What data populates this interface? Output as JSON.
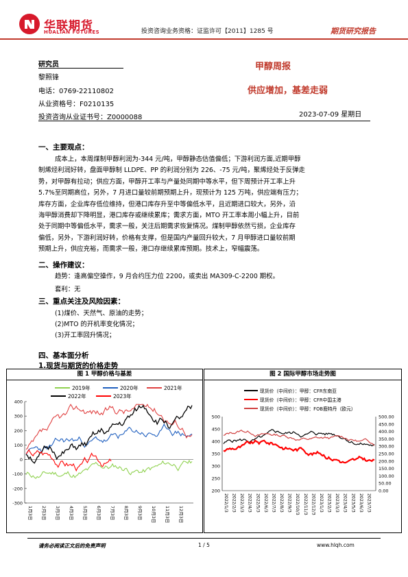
{
  "header": {
    "company_cn": "华联期货",
    "company_en": "HUALIAN FUTURES",
    "license": "投资咨询业务资格：证监许可【2011】1285 号",
    "report_type": "期货研究报告",
    "brand_color": "#d7192b"
  },
  "analyst": {
    "label": "研究员",
    "name": "黎照锋",
    "phone": "电话：0769-22110802",
    "qualification": "从业资格号：F0210135",
    "advisory_cert": "投资咨询从业证书号：Z0000088"
  },
  "report": {
    "title": "甲醇周报",
    "subtitle": "供应增加，基差走弱",
    "date": "2023-07-09 星期日"
  },
  "sections": {
    "s1_title": "一、主要观点：",
    "s1_lines": [
      "成本上，本周煤制甲醇利润为-344 元/吨，甲醇静态估值偏低；下游利润方面,近期甲醇",
      "制烯烃利润好转，盘面甲醇制 LLDPE、PP 的利润分别为 226、-75 元/吨，聚烯烃处于反弹走",
      "势，对甲醇有拉动；供应方面，甲醇开工率与产量处同期中等水平，但下周预计开工率上升",
      "5.7%至同期高位，另外，7 月进口量较前期预期上升，现预计为 125 万吨，供应端有压力；",
      "库存方面，企业库存低位维持，但港口库存升至中等偏低水平，且近期进口较大，另外，沿",
      "海甲醇消费却下降明显，港口库存或继续累库；需求方面，MTO 开工率本周小幅上升，目前",
      "处于同期中等偏低水平，需求一般，关注后期需求恢复情况。煤制甲醇依然亏损，企业库存",
      "偏低，另外，下游利润好转，价格有支撑，但是国内产量回升较大，7 月甲醇进口量较前期",
      "预期上升，供应充裕，而需求一般，港口存继续累库预期。技术上，窄幅震荡。"
    ],
    "s2_title": "二、操作建议：",
    "s2_trend": "趋势：逢高偏空操作，9 月合约压力位 2200，或卖出 MA309-C-2200 期权。",
    "s2_arb": "套利：无",
    "s3_title": "三、重点关注及风险因素：",
    "s3_items": [
      "(1)煤价、天然气、原油的走势；",
      "(2)MTO 的开机率变化情况；",
      "(3)开工率回升情况；"
    ],
    "s4_title": "四、基本面分析",
    "s4_sub": "1.现货与期货的价格走势"
  },
  "chart_data": [
    {
      "type": "line",
      "title": "图 1 甲醇价格与基差",
      "series": [
        {
          "name": "2019年",
          "color": "#8fd14f"
        },
        {
          "name": "2020年",
          "color": "#1f5fbf"
        },
        {
          "name": "2021年",
          "color": "#e04040"
        },
        {
          "name": "2022年",
          "color": "#000000"
        },
        {
          "name": "2023年",
          "color": "#ff0000"
        }
      ],
      "yticks": [
        "400",
        "300",
        "200",
        "100",
        "0",
        "-100",
        "-200",
        "-300"
      ],
      "ylim": [
        -300,
        400
      ],
      "xticks": [
        "1月3日",
        "2月3日",
        "3月3日",
        "4月3日",
        "5月3日",
        "6月3日",
        "7月3日",
        "8月3日",
        "9月3日",
        "10月3日",
        "11月3日",
        "12月3日"
      ]
    },
    {
      "type": "line",
      "title": "图 2 国际甲醇市场走势图",
      "series": [
        {
          "name": "现货价（中间价）：甲醇：CFR东南亚",
          "color": "#000000"
        },
        {
          "name": "现货价（中间价）：甲醇：CFR中国主港",
          "color": "#ff0000"
        },
        {
          "name": "现货价（中间价）：甲醇：FOB鹿特丹（欧元）",
          "color": "#d04040"
        }
      ],
      "yticks_left": [
        "500",
        "450",
        "400",
        "350",
        "300",
        "250",
        "200"
      ],
      "ylim_left": [
        200,
        500
      ],
      "yticks_right": [
        "500.00",
        "450.00",
        "400.00",
        "350.00",
        "300.00",
        "250.00",
        "200.00",
        "150.00",
        "100.00",
        "50.00",
        "0.00"
      ],
      "ylim_right": [
        0,
        500
      ],
      "xticks": [
        "2022/1/3",
        "2022/2/3",
        "2022/3/3",
        "2022/4/3",
        "2022/5/3",
        "2022/6/3",
        "2022/7/3",
        "2022/8/3",
        "2022/9/3",
        "2022/10/3",
        "2022/11/3",
        "2022/12/3",
        "2023/1/3",
        "2023/2/3",
        "2023/3/3",
        "2023/4/3",
        "2023/5/3",
        "2023/6/3",
        "2023/7/3"
      ]
    }
  ],
  "footer": {
    "disclaimer": "请务必阅读正文后的免责声明",
    "page": "1 / 5",
    "url": "www.hlqh.com"
  }
}
